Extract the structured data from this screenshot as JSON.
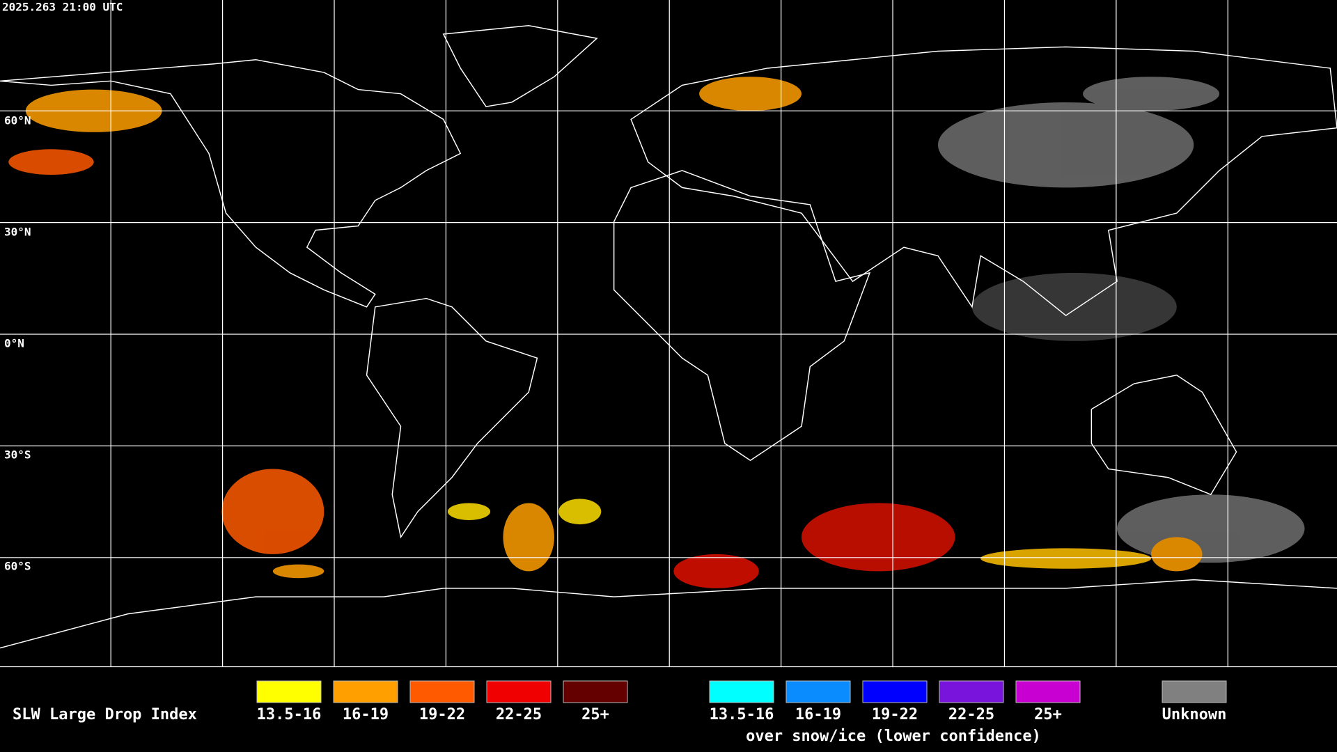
{
  "timestamp": "2025.263 21:00 UTC",
  "latitude_labels": [
    "60°N",
    "30°N",
    "0°N",
    "30°S",
    "60°S"
  ],
  "legend": {
    "title": "SLW Large Drop Index",
    "groups": [
      {
        "items": [
          {
            "label": "13.5-16",
            "color": "#ffff00"
          },
          {
            "label": "16-19",
            "color": "#ff9f00"
          },
          {
            "label": "19-22",
            "color": "#ff5a00"
          },
          {
            "label": "22-25",
            "color": "#f00000"
          },
          {
            "label": "25+",
            "color": "#640000"
          }
        ]
      },
      {
        "items": [
          {
            "label": "13.5-16",
            "color": "#00ffff"
          },
          {
            "label": "16-19",
            "color": "#0a8cff"
          },
          {
            "label": "19-22",
            "color": "#0000ff"
          },
          {
            "label": "22-25",
            "color": "#7814dc"
          },
          {
            "label": "25+",
            "color": "#c800d2"
          }
        ],
        "caption": "over snow/ice (lower confidence)"
      },
      {
        "items": [
          {
            "label": "Unknown",
            "color": "#808080"
          }
        ]
      }
    ]
  }
}
